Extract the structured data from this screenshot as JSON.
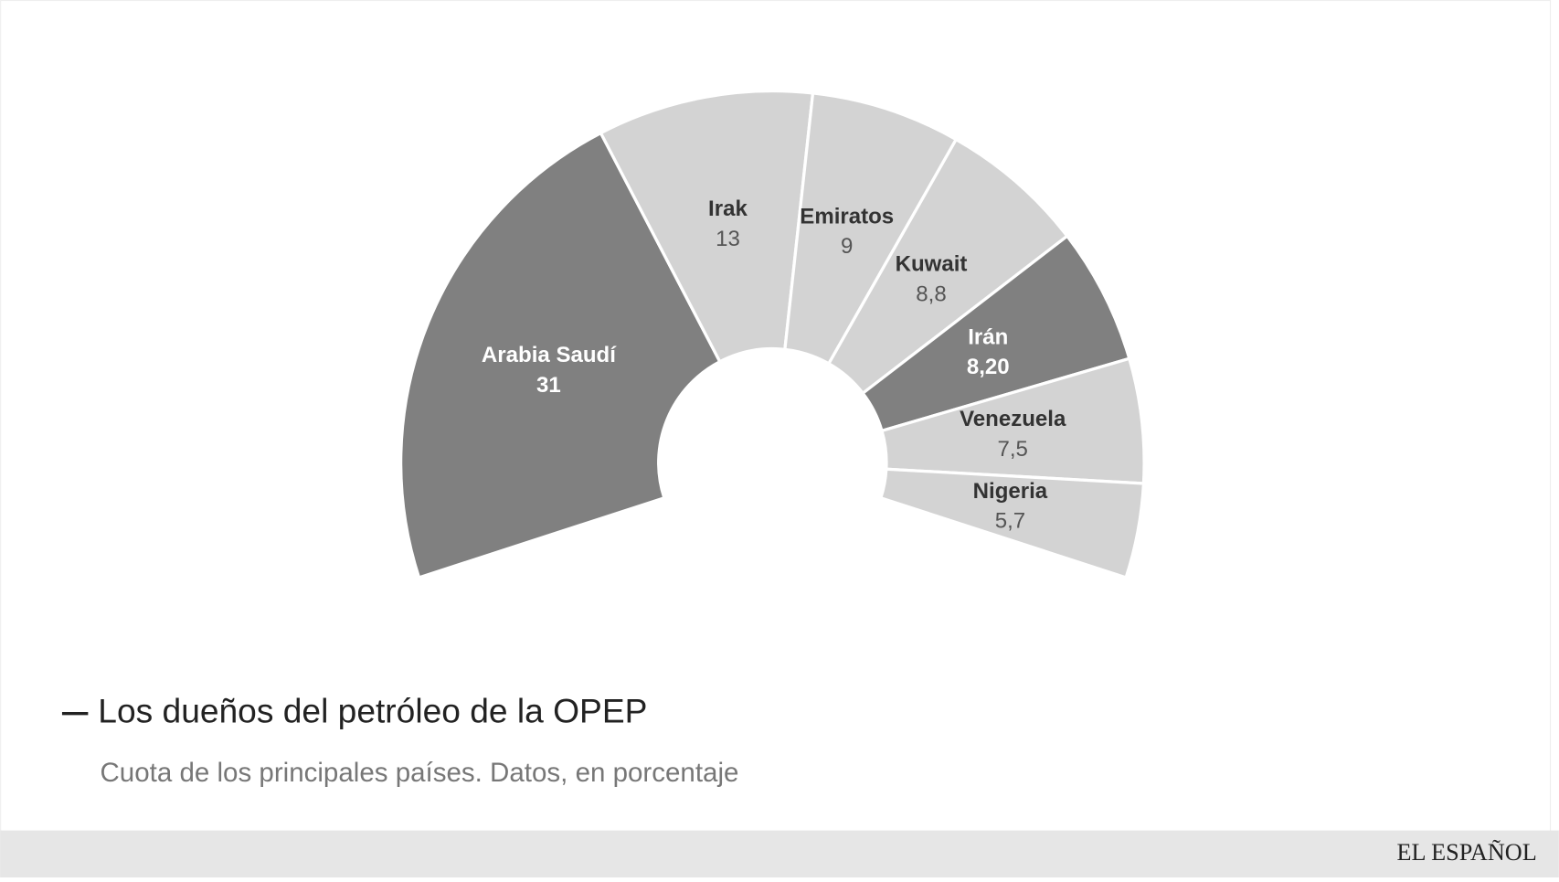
{
  "chart_data": {
    "type": "donut",
    "title": "Los dueños del petróleo de la OPEP",
    "subtitle": "Cuota de los principales países. Datos, en porcentaje",
    "source": "EL ESPAÑOL",
    "categories": [
      "Arabia Saudí",
      "Irak",
      "Emiratos",
      "Kuwait",
      "Irán",
      "Venezuela",
      "Nigeria"
    ],
    "values": [
      31,
      13,
      9,
      8.8,
      8.2,
      7.5,
      5.7
    ],
    "value_labels": [
      "31",
      "13",
      "9",
      "8,8",
      "8,20",
      "7,5",
      "5,7"
    ],
    "colors": [
      "#808080",
      "#d3d3d3",
      "#d3d3d3",
      "#d3d3d3",
      "#808080",
      "#d3d3d3",
      "#d3d3d3"
    ]
  }
}
